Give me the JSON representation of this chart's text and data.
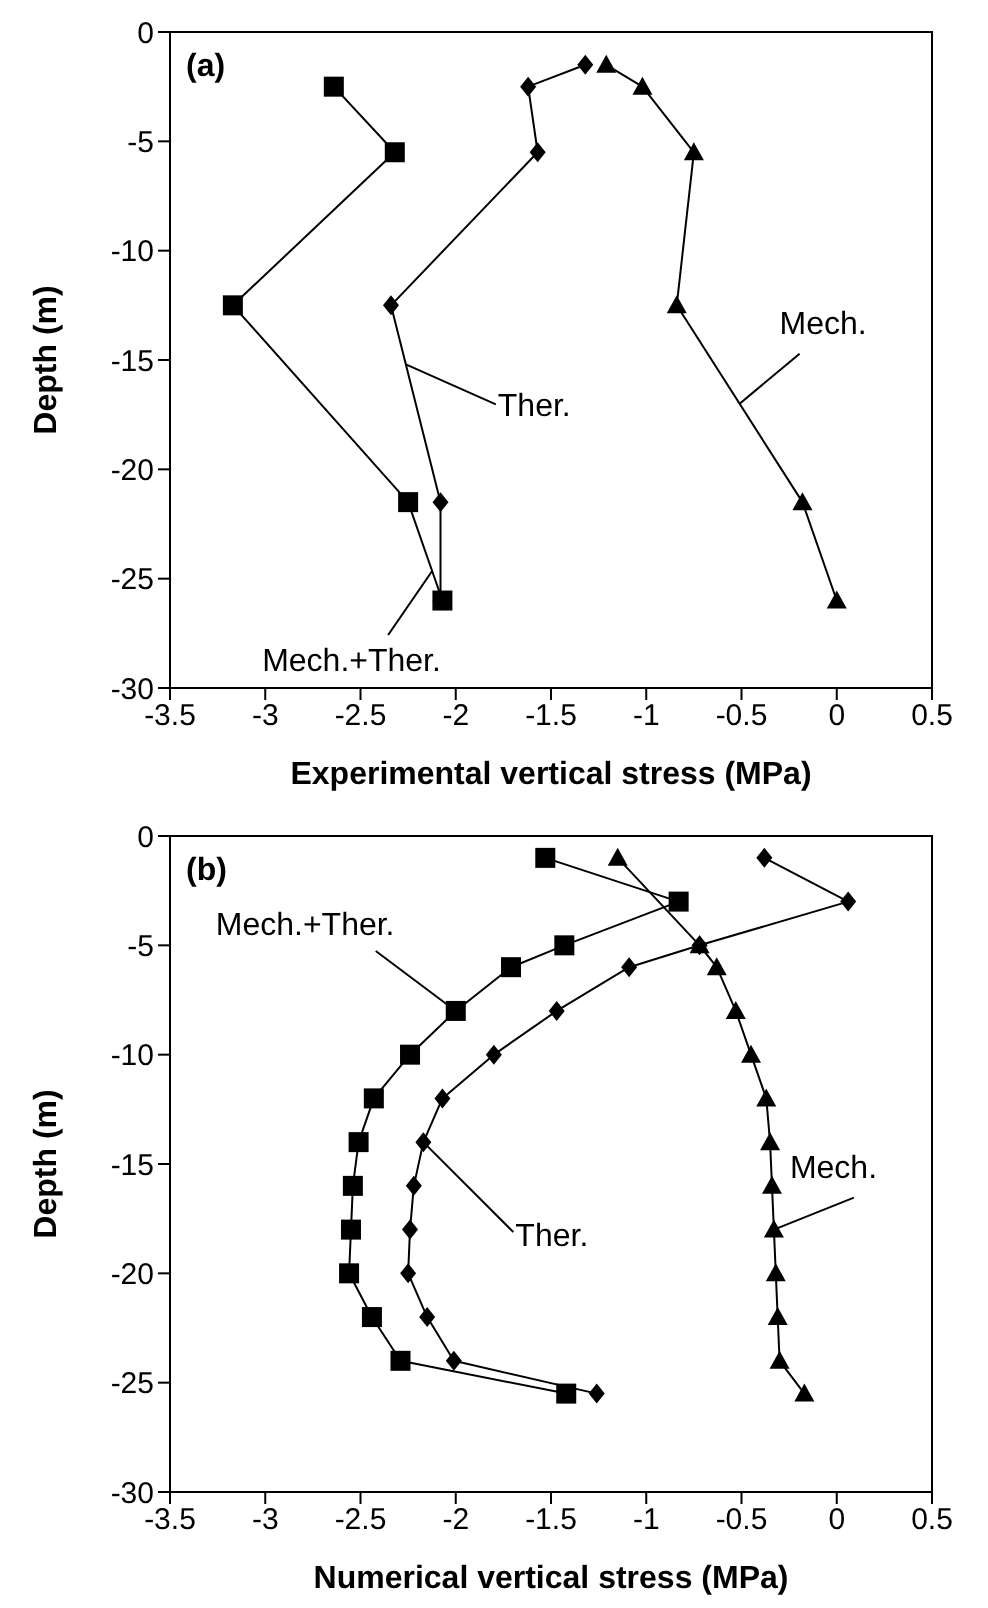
{
  "chart_data": [
    {
      "type": "line",
      "xlabel": "Experimental vertical stress (MPa)",
      "ylabel": "Depth (m)",
      "annotations": [
        "(a)"
      ],
      "xlim": [
        -3.5,
        0.5
      ],
      "xticks": [
        -3.5,
        -3,
        -2.5,
        -2,
        -1.5,
        -1,
        -0.5,
        0,
        0.5
      ],
      "ylim": [
        -30,
        0
      ],
      "yticks": [
        -30,
        -25,
        -20,
        -15,
        -10,
        -5,
        0
      ],
      "series": [
        {
          "name": "Mech.+Ther.",
          "color": "#000000",
          "marker": "square",
          "x": [
            -2.64,
            -2.32,
            -3.17,
            -2.25,
            -2.07
          ],
          "values": [
            -2.5,
            -5.5,
            -12.5,
            -21.5,
            -26
          ]
        },
        {
          "name": "Ther.",
          "color": "#000000",
          "marker": "diamond",
          "x": [
            -1.32,
            -1.62,
            -1.57,
            -2.34,
            -2.08,
            -2.08
          ],
          "values": [
            -1.5,
            -2.5,
            -5.5,
            -12.5,
            -21.5,
            -26
          ]
        },
        {
          "name": "Mech.",
          "color": "#000000",
          "marker": "triangle",
          "x": [
            -1.21,
            -1.02,
            -0.75,
            -0.84,
            -0.18,
            0
          ],
          "values": [
            -1.5,
            -2.5,
            -5.5,
            -12.5,
            -21.5,
            -26
          ]
        }
      ]
    },
    {
      "type": "line",
      "xlabel": "Numerical vertical stress (MPa)",
      "ylabel": "Depth (m)",
      "annotations": [
        "(b)"
      ],
      "xlim": [
        -3.5,
        0.5
      ],
      "xticks": [
        -3.5,
        -3,
        -2.5,
        -2,
        -1.5,
        -1,
        -0.5,
        0,
        0.5
      ],
      "ylim": [
        -30,
        0
      ],
      "yticks": [
        -30,
        -25,
        -20,
        -15,
        -10,
        -5,
        0
      ],
      "series": [
        {
          "name": "Mech.+Ther.",
          "color": "#000000",
          "marker": "square",
          "x": [
            -1.53,
            -0.83,
            -1.43,
            -1.71,
            -2.0,
            -2.24,
            -2.43,
            -2.51,
            -2.54,
            -2.55,
            -2.56,
            -2.44,
            -2.29,
            -1.42
          ],
          "values": [
            -1,
            -3,
            -5,
            -6,
            -8,
            -10,
            -12,
            -14,
            -16,
            -18,
            -20,
            -22,
            -24,
            -25.5
          ]
        },
        {
          "name": "Ther.",
          "color": "#000000",
          "marker": "diamond",
          "x": [
            -0.38,
            0.06,
            -0.72,
            -1.09,
            -1.47,
            -1.8,
            -2.07,
            -2.17,
            -2.22,
            -2.24,
            -2.25,
            -2.15,
            -2.01,
            -1.26
          ],
          "values": [
            -1,
            -3,
            -5,
            -6,
            -8,
            -10,
            -12,
            -14,
            -16,
            -18,
            -20,
            -22,
            -24,
            -25.5
          ]
        },
        {
          "name": "Mech.",
          "color": "#000000",
          "marker": "triangle",
          "x": [
            -1.15,
            -0.72,
            -0.63,
            -0.53,
            -0.45,
            -0.37,
            -0.35,
            -0.34,
            -0.33,
            -0.32,
            -0.31,
            -0.3,
            -0.17
          ],
          "values": [
            -1,
            -5,
            -6,
            -8,
            -10,
            -12,
            -14,
            -16,
            -18,
            -20,
            -22,
            -24,
            -25.5
          ]
        }
      ]
    }
  ]
}
